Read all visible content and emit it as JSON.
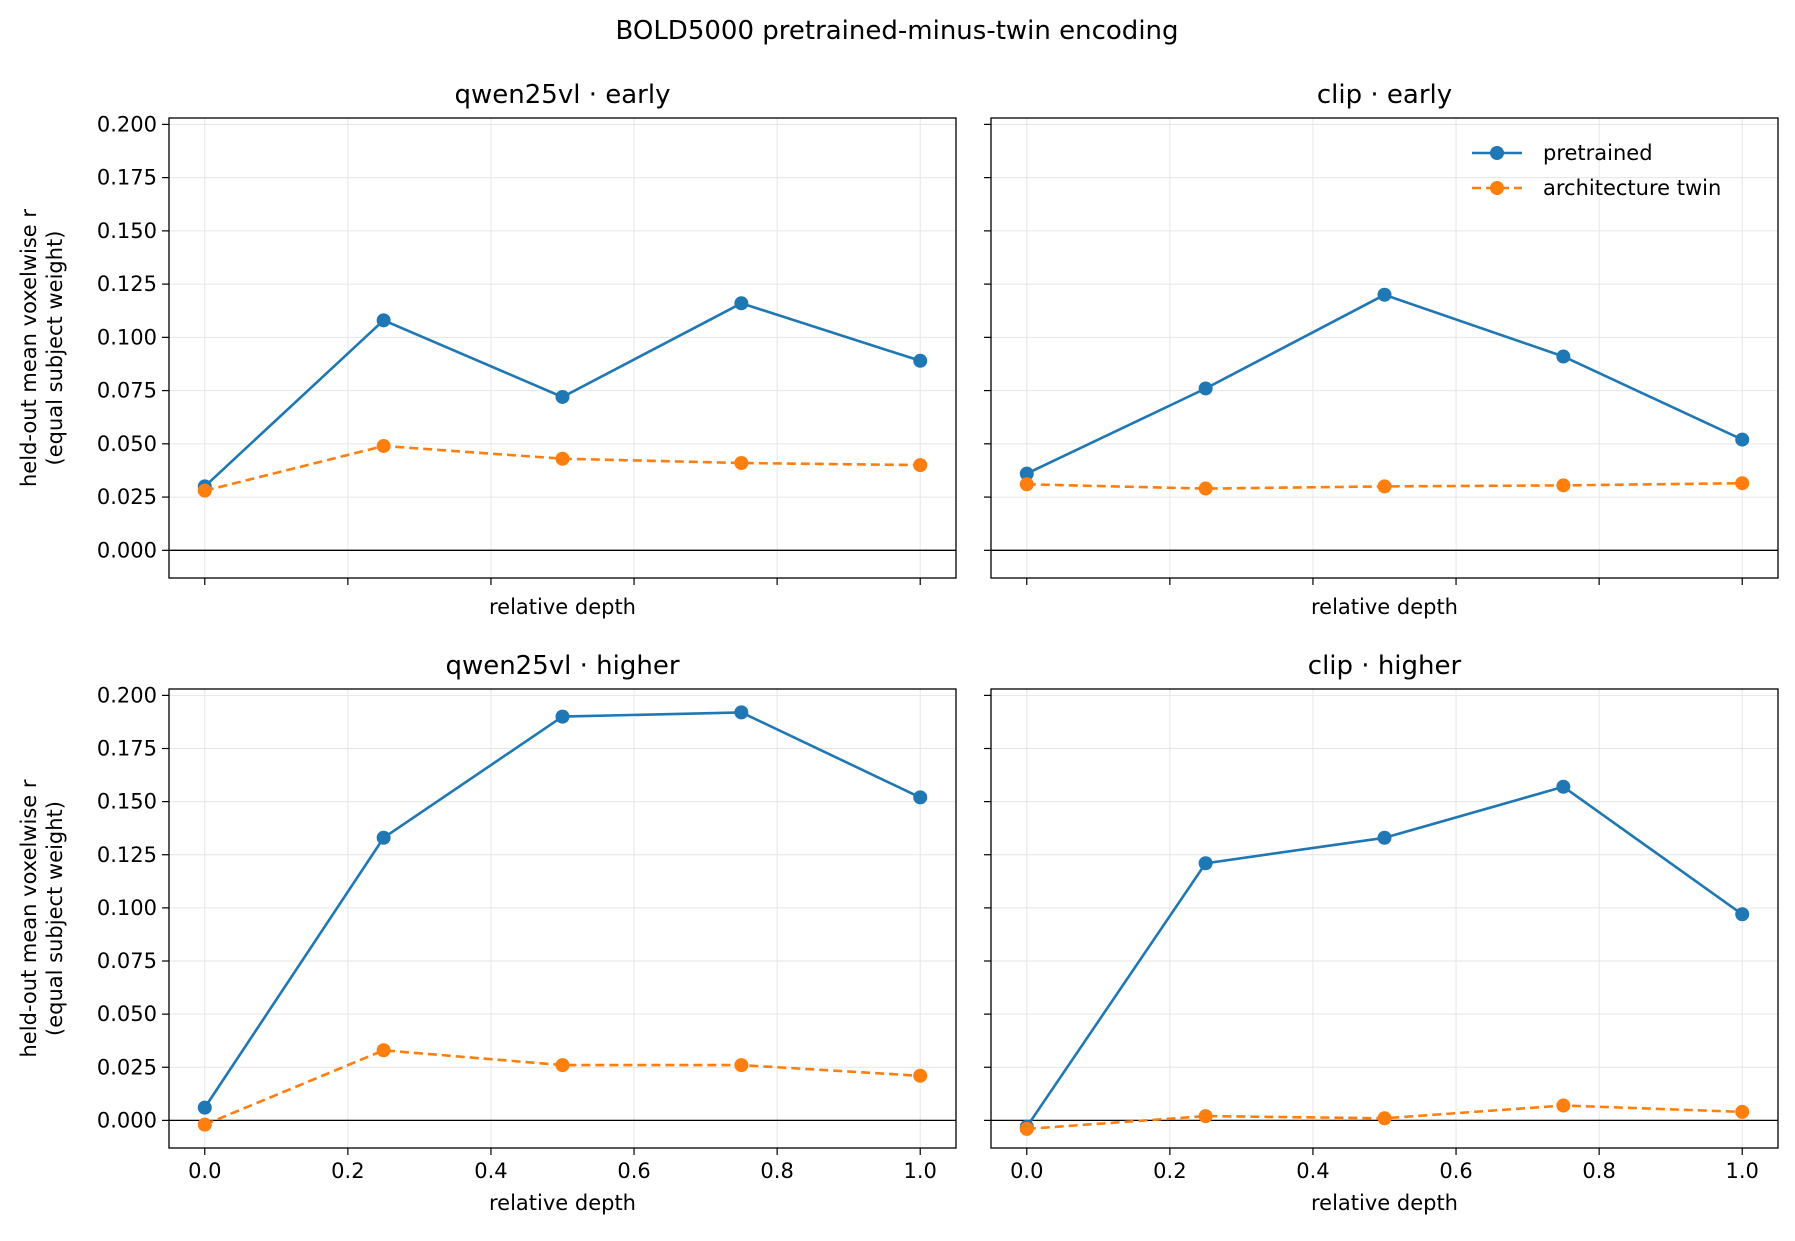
{
  "figure": {
    "title": "BOLD5000 pretrained-minus-twin encoding"
  },
  "legend": {
    "placement": "upper-right of top-right panel",
    "entries": [
      {
        "label": "pretrained",
        "color": "#1f77b4",
        "style": "solid"
      },
      {
        "label": "architecture twin",
        "color": "#ff7f0e",
        "style": "dashed"
      }
    ]
  },
  "colors": {
    "pretrained": "#1f77b4",
    "twin": "#ff7f0e",
    "grid": "#e6e6e6"
  },
  "chart_data": [
    {
      "type": "line",
      "title": "qwen25vl · early",
      "xlabel": "relative depth",
      "ylabel": [
        "held-out mean voxelwise r",
        "(equal subject weight)"
      ],
      "x": [
        0.0,
        0.25,
        0.5,
        0.75,
        1.0
      ],
      "xlim": [
        -0.05,
        1.05
      ],
      "ylim": [
        -0.013,
        0.203
      ],
      "xticks": [
        0.0,
        0.2,
        0.4,
        0.6,
        0.8,
        1.0
      ],
      "xticklabels": [
        "",
        "",
        "",
        "",
        "",
        ""
      ],
      "yticks": [
        0.0,
        0.025,
        0.05,
        0.075,
        0.1,
        0.125,
        0.15,
        0.175,
        0.2
      ],
      "yticklabels": [
        "0.000",
        "0.025",
        "0.050",
        "0.075",
        "0.100",
        "0.125",
        "0.150",
        "0.175",
        "0.200"
      ],
      "grid": true,
      "zero_line": true,
      "series": [
        {
          "name": "pretrained",
          "values": [
            0.03,
            0.108,
            0.072,
            0.116,
            0.089
          ]
        },
        {
          "name": "architecture twin",
          "values": [
            0.028,
            0.049,
            0.043,
            0.041,
            0.04
          ]
        }
      ]
    },
    {
      "type": "line",
      "title": "clip · early",
      "xlabel": "relative depth",
      "ylabel": [],
      "x": [
        0.0,
        0.25,
        0.5,
        0.75,
        1.0
      ],
      "xlim": [
        -0.05,
        1.05
      ],
      "ylim": [
        -0.013,
        0.203
      ],
      "xticks": [
        0.0,
        0.2,
        0.4,
        0.6,
        0.8,
        1.0
      ],
      "xticklabels": [
        "",
        "",
        "",
        "",
        "",
        ""
      ],
      "yticks": [
        0.0,
        0.025,
        0.05,
        0.075,
        0.1,
        0.125,
        0.15,
        0.175,
        0.2
      ],
      "yticklabels": [
        "",
        "",
        "",
        "",
        "",
        "",
        "",
        "",
        ""
      ],
      "grid": true,
      "zero_line": true,
      "legend": true,
      "series": [
        {
          "name": "pretrained",
          "values": [
            0.036,
            0.076,
            0.12,
            0.091,
            0.052
          ]
        },
        {
          "name": "architecture twin",
          "values": [
            0.031,
            0.029,
            0.03,
            0.0305,
            0.0315
          ]
        }
      ]
    },
    {
      "type": "line",
      "title": "qwen25vl · higher",
      "xlabel": "relative depth",
      "ylabel": [
        "held-out mean voxelwise r",
        "(equal subject weight)"
      ],
      "x": [
        0.0,
        0.25,
        0.5,
        0.75,
        1.0
      ],
      "xlim": [
        -0.05,
        1.05
      ],
      "ylim": [
        -0.013,
        0.203
      ],
      "xticks": [
        0.0,
        0.2,
        0.4,
        0.6,
        0.8,
        1.0
      ],
      "xticklabels": [
        "0.0",
        "0.2",
        "0.4",
        "0.6",
        "0.8",
        "1.0"
      ],
      "yticks": [
        0.0,
        0.025,
        0.05,
        0.075,
        0.1,
        0.125,
        0.15,
        0.175,
        0.2
      ],
      "yticklabels": [
        "0.000",
        "0.025",
        "0.050",
        "0.075",
        "0.100",
        "0.125",
        "0.150",
        "0.175",
        "0.200"
      ],
      "grid": true,
      "zero_line": true,
      "series": [
        {
          "name": "pretrained",
          "values": [
            0.006,
            0.133,
            0.19,
            0.192,
            0.152
          ]
        },
        {
          "name": "architecture twin",
          "values": [
            -0.002,
            0.033,
            0.026,
            0.026,
            0.021
          ]
        }
      ]
    },
    {
      "type": "line",
      "title": "clip · higher",
      "xlabel": "relative depth",
      "ylabel": [],
      "x": [
        0.0,
        0.25,
        0.5,
        0.75,
        1.0
      ],
      "xlim": [
        -0.05,
        1.05
      ],
      "ylim": [
        -0.013,
        0.203
      ],
      "xticks": [
        0.0,
        0.2,
        0.4,
        0.6,
        0.8,
        1.0
      ],
      "xticklabels": [
        "0.0",
        "0.2",
        "0.4",
        "0.6",
        "0.8",
        "1.0"
      ],
      "yticks": [
        0.0,
        0.025,
        0.05,
        0.075,
        0.1,
        0.125,
        0.15,
        0.175,
        0.2
      ],
      "yticklabels": [
        "",
        "",
        "",
        "",
        "",
        "",
        "",
        "",
        ""
      ],
      "grid": true,
      "zero_line": true,
      "series": [
        {
          "name": "pretrained",
          "values": [
            -0.003,
            0.121,
            0.133,
            0.157,
            0.097
          ]
        },
        {
          "name": "architecture twin",
          "values": [
            -0.004,
            0.002,
            0.001,
            0.007,
            0.004
          ]
        }
      ]
    }
  ]
}
